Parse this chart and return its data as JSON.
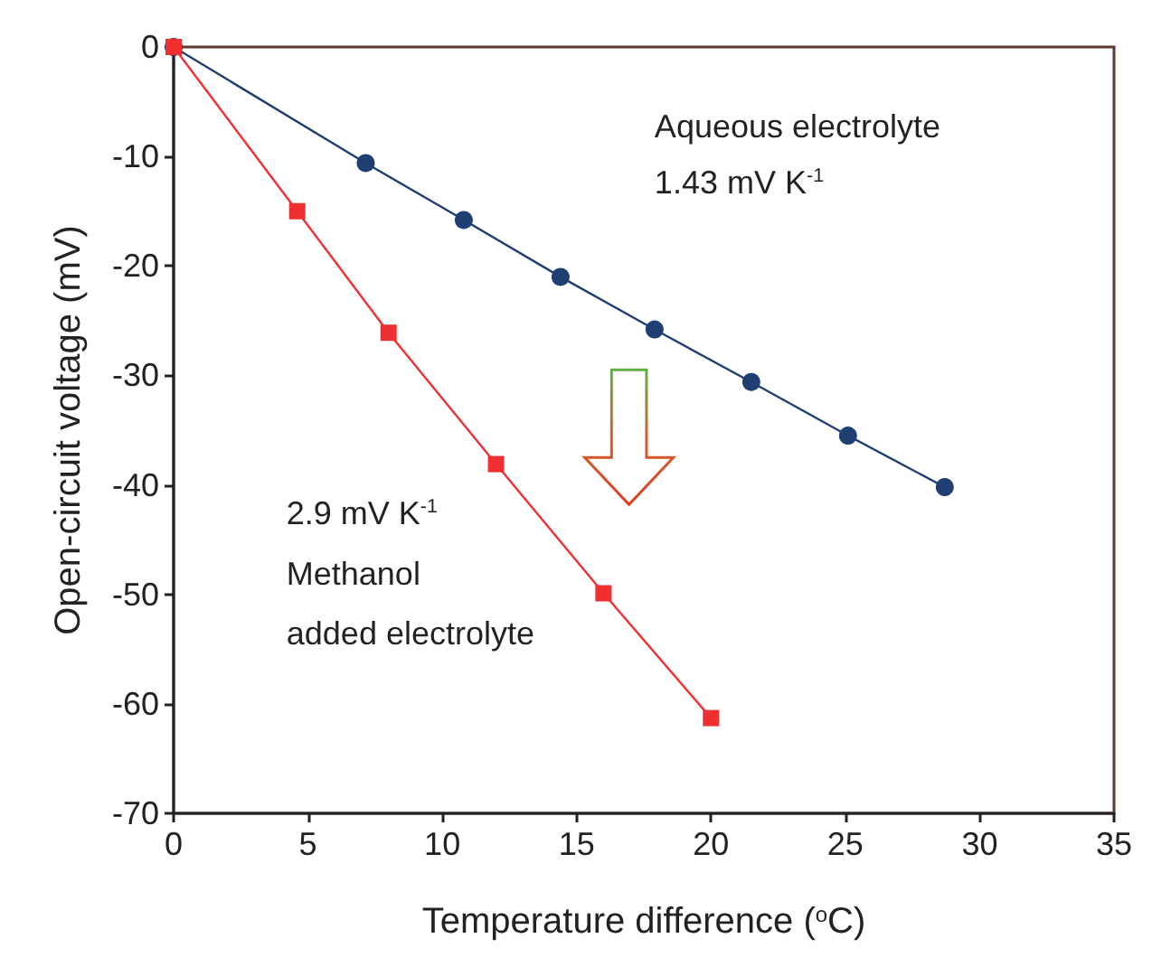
{
  "chart_data": {
    "type": "line",
    "xlabel": "Temperature difference ($^{o}$C)",
    "ylabel": "Open-circuit voltage (mV)",
    "xlim": [
      0,
      35
    ],
    "xticks": [
      0,
      5,
      10,
      15,
      20,
      25,
      30,
      35
    ],
    "ylim": [
      -70,
      0
    ],
    "yticks": [
      -70,
      -60,
      -50,
      -40,
      -30,
      -20,
      -10,
      0
    ],
    "grid": false,
    "series": [
      {
        "color": "#1f3f73",
        "marker": "circle",
        "x": [
          0,
          7.15,
          10.8,
          14.4,
          17.9,
          21.5,
          25.1,
          28.7
        ],
        "values": [
          0,
          -10.6,
          -15.8,
          -21,
          -25.8,
          -30.6,
          -35.5,
          -40.2
        ]
      },
      {
        "color": "#f03030",
        "marker": "square",
        "x": [
          0,
          4.6,
          8,
          12,
          16,
          20
        ],
        "values": [
          0,
          -15,
          -26.1,
          -38.1,
          -49.9,
          -61.3
        ]
      }
    ],
    "annotations": [
      "Aqueous electrolyte",
      "1.43 mV K$^{-1}$",
      "2.9 mV K$^{-1}$",
      "Methanol",
      "added electrolyte"
    ]
  }
}
